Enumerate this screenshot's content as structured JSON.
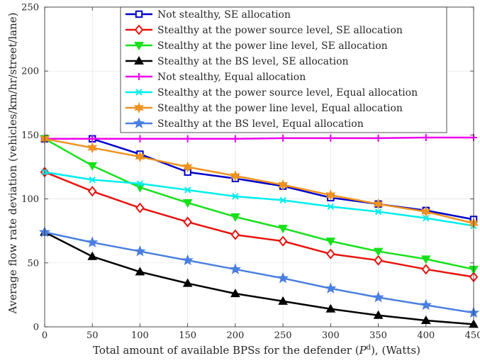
{
  "chart_data": {
    "type": "line",
    "xlabel": "Total amount of available BPSs for the defender (P^d), (Watts)",
    "xlabel_parts": {
      "before": "Total amount of available BPSs for the defender (",
      "symbol": "P",
      "superscript": "d",
      "after": "), (Watts)"
    },
    "ylabel": "Average flow rate deviation (vehicles/km/hr/street/lane)",
    "xlim": [
      0,
      450
    ],
    "ylim": [
      0,
      250
    ],
    "x_ticks": [
      0,
      50,
      100,
      150,
      200,
      250,
      300,
      350,
      400,
      450
    ],
    "y_ticks": [
      0,
      50,
      100,
      150,
      200,
      250
    ],
    "grid": true,
    "legend_position": "top-right",
    "x": [
      0,
      50,
      100,
      150,
      200,
      250,
      300,
      350,
      400,
      450
    ],
    "series": [
      {
        "name": "Not stealthy, SE allocation",
        "color": "#0000cc",
        "marker": "square",
        "values": [
          147,
          147,
          135,
          121,
          116,
          110,
          101,
          96,
          91,
          84
        ]
      },
      {
        "name": "Stealthy at the power source level, SE allocation",
        "color": "#e8140f",
        "marker": "diamond",
        "values": [
          121,
          106,
          93,
          82,
          72,
          67,
          57,
          52,
          45,
          39
        ]
      },
      {
        "name": "Stealthy at the power line level, SE allocation",
        "color": "#18e01a",
        "marker": "triangle-down",
        "values": [
          147,
          126,
          109,
          97,
          86,
          77,
          67,
          59,
          53,
          45
        ]
      },
      {
        "name": "Stealthy at the BS level, SE allocation",
        "color": "#000000",
        "marker": "triangle-up",
        "values": [
          74,
          55,
          43,
          34,
          26,
          20,
          14,
          9,
          5,
          2
        ]
      },
      {
        "name": "Not stealthy, Equal allocation",
        "color": "#ee00ee",
        "marker": "plus",
        "values": [
          147,
          147,
          147,
          147,
          147,
          147.5,
          147.5,
          147.5,
          148,
          148
        ]
      },
      {
        "name": "Stealthy at the power source level, Equal allocation",
        "color": "#00eeee",
        "marker": "x",
        "values": [
          121,
          115,
          112,
          107,
          102,
          99,
          94,
          90,
          85,
          79
        ]
      },
      {
        "name": "Stealthy at the power line level, Equal allocation",
        "color": "#ee9220",
        "marker": "star6",
        "values": [
          147,
          140,
          133,
          125,
          118,
          111,
          103,
          96,
          90,
          81
        ]
      },
      {
        "name": "Stealthy at the BS level, Equal allocation",
        "color": "#4a7fe0",
        "marker": "star5",
        "values": [
          74,
          66,
          59,
          52,
          45,
          38,
          30,
          23,
          17,
          11
        ]
      }
    ]
  }
}
